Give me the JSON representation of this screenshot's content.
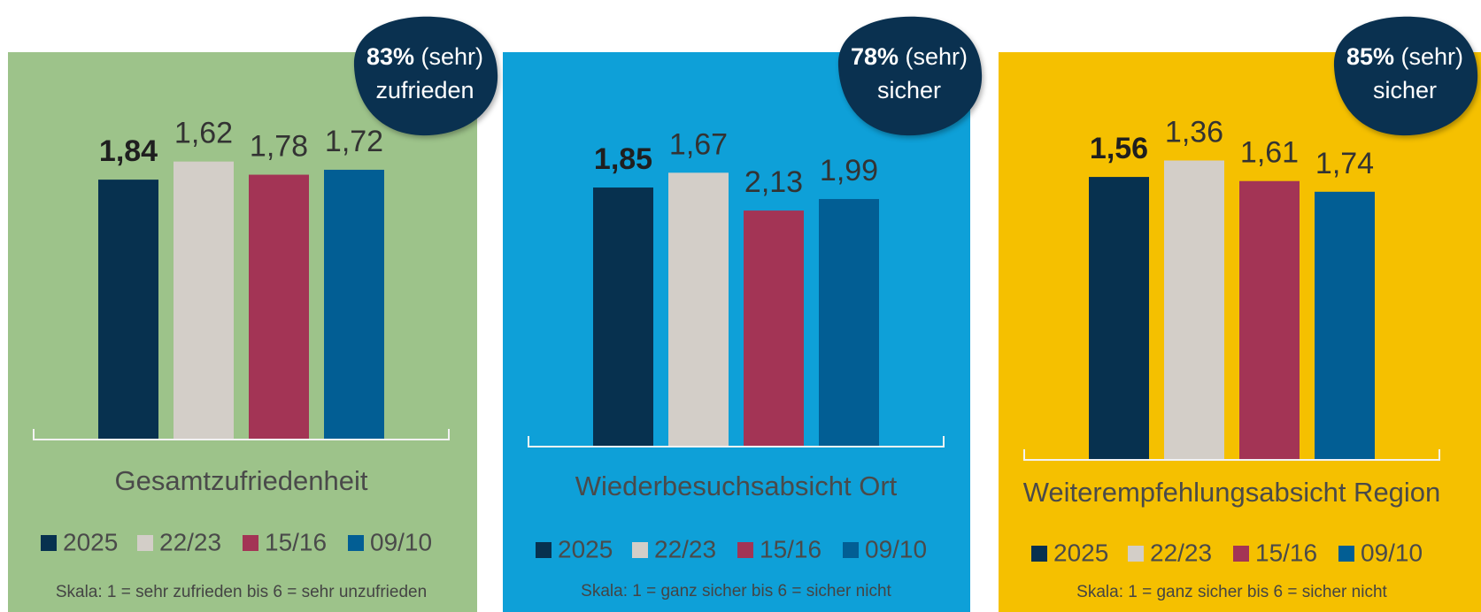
{
  "chart_data": [
    {
      "type": "bar",
      "background": "#9dc38a",
      "categories": [
        "Gesamtzufriedenheit"
      ],
      "ylim": [
        5,
        0
      ],
      "series": [
        {
          "name": "2025",
          "color": "#07314f",
          "values": [
            1.84
          ],
          "value_labels": [
            "1,84"
          ]
        },
        {
          "name": "22/23",
          "color": "#d3cec8",
          "values": [
            1.62
          ],
          "value_labels": [
            "1,62"
          ]
        },
        {
          "name": "15/16",
          "color": "#a33455",
          "values": [
            1.78
          ],
          "value_labels": [
            "1,78"
          ]
        },
        {
          "name": "09/10",
          "color": "#025e94",
          "values": [
            1.72
          ],
          "value_labels": [
            "1,72"
          ]
        }
      ],
      "badge": {
        "highlight": "83%",
        "text": "(sehr)",
        "line2": "zufrieden"
      },
      "note": "Skala: 1 = sehr zufrieden bis 6 = sehr unzufrieden"
    },
    {
      "type": "bar",
      "background": "#0ea0d8",
      "categories": [
        "Wiederbesuchsabsicht Ort"
      ],
      "ylim": [
        5,
        0
      ],
      "series": [
        {
          "name": "2025",
          "color": "#07314f",
          "values": [
            1.85
          ],
          "value_labels": [
            "1,85"
          ]
        },
        {
          "name": "22/23",
          "color": "#d3cec8",
          "values": [
            1.67
          ],
          "value_labels": [
            "1,67"
          ]
        },
        {
          "name": "15/16",
          "color": "#a33455",
          "values": [
            2.13
          ],
          "value_labels": [
            "2,13"
          ]
        },
        {
          "name": "09/10",
          "color": "#025e94",
          "values": [
            1.99
          ],
          "value_labels": [
            "1,99"
          ]
        }
      ],
      "badge": {
        "highlight": "78%",
        "text": "(sehr)",
        "line2": "sicher"
      },
      "note": "Skala: 1 = ganz sicher bis 6 = sicher nicht"
    },
    {
      "type": "bar",
      "background": "#f5c000",
      "categories": [
        "Weiterempfehlungsabsicht Region"
      ],
      "ylim": [
        5,
        0
      ],
      "series": [
        {
          "name": "2025",
          "color": "#07314f",
          "values": [
            1.56
          ],
          "value_labels": [
            "1,56"
          ]
        },
        {
          "name": "22/23",
          "color": "#d3cec8",
          "values": [
            1.36
          ],
          "value_labels": [
            "1,36"
          ]
        },
        {
          "name": "15/16",
          "color": "#a33455",
          "values": [
            1.61
          ],
          "value_labels": [
            "1,61"
          ]
        },
        {
          "name": "09/10",
          "color": "#025e94",
          "values": [
            1.74
          ],
          "value_labels": [
            "1,74"
          ]
        }
      ],
      "badge": {
        "highlight": "85%",
        "text": "(sehr)",
        "line2": "sicher"
      },
      "note": "Skala: 1 = ganz sicher bis 6 = sicher nicht"
    }
  ]
}
